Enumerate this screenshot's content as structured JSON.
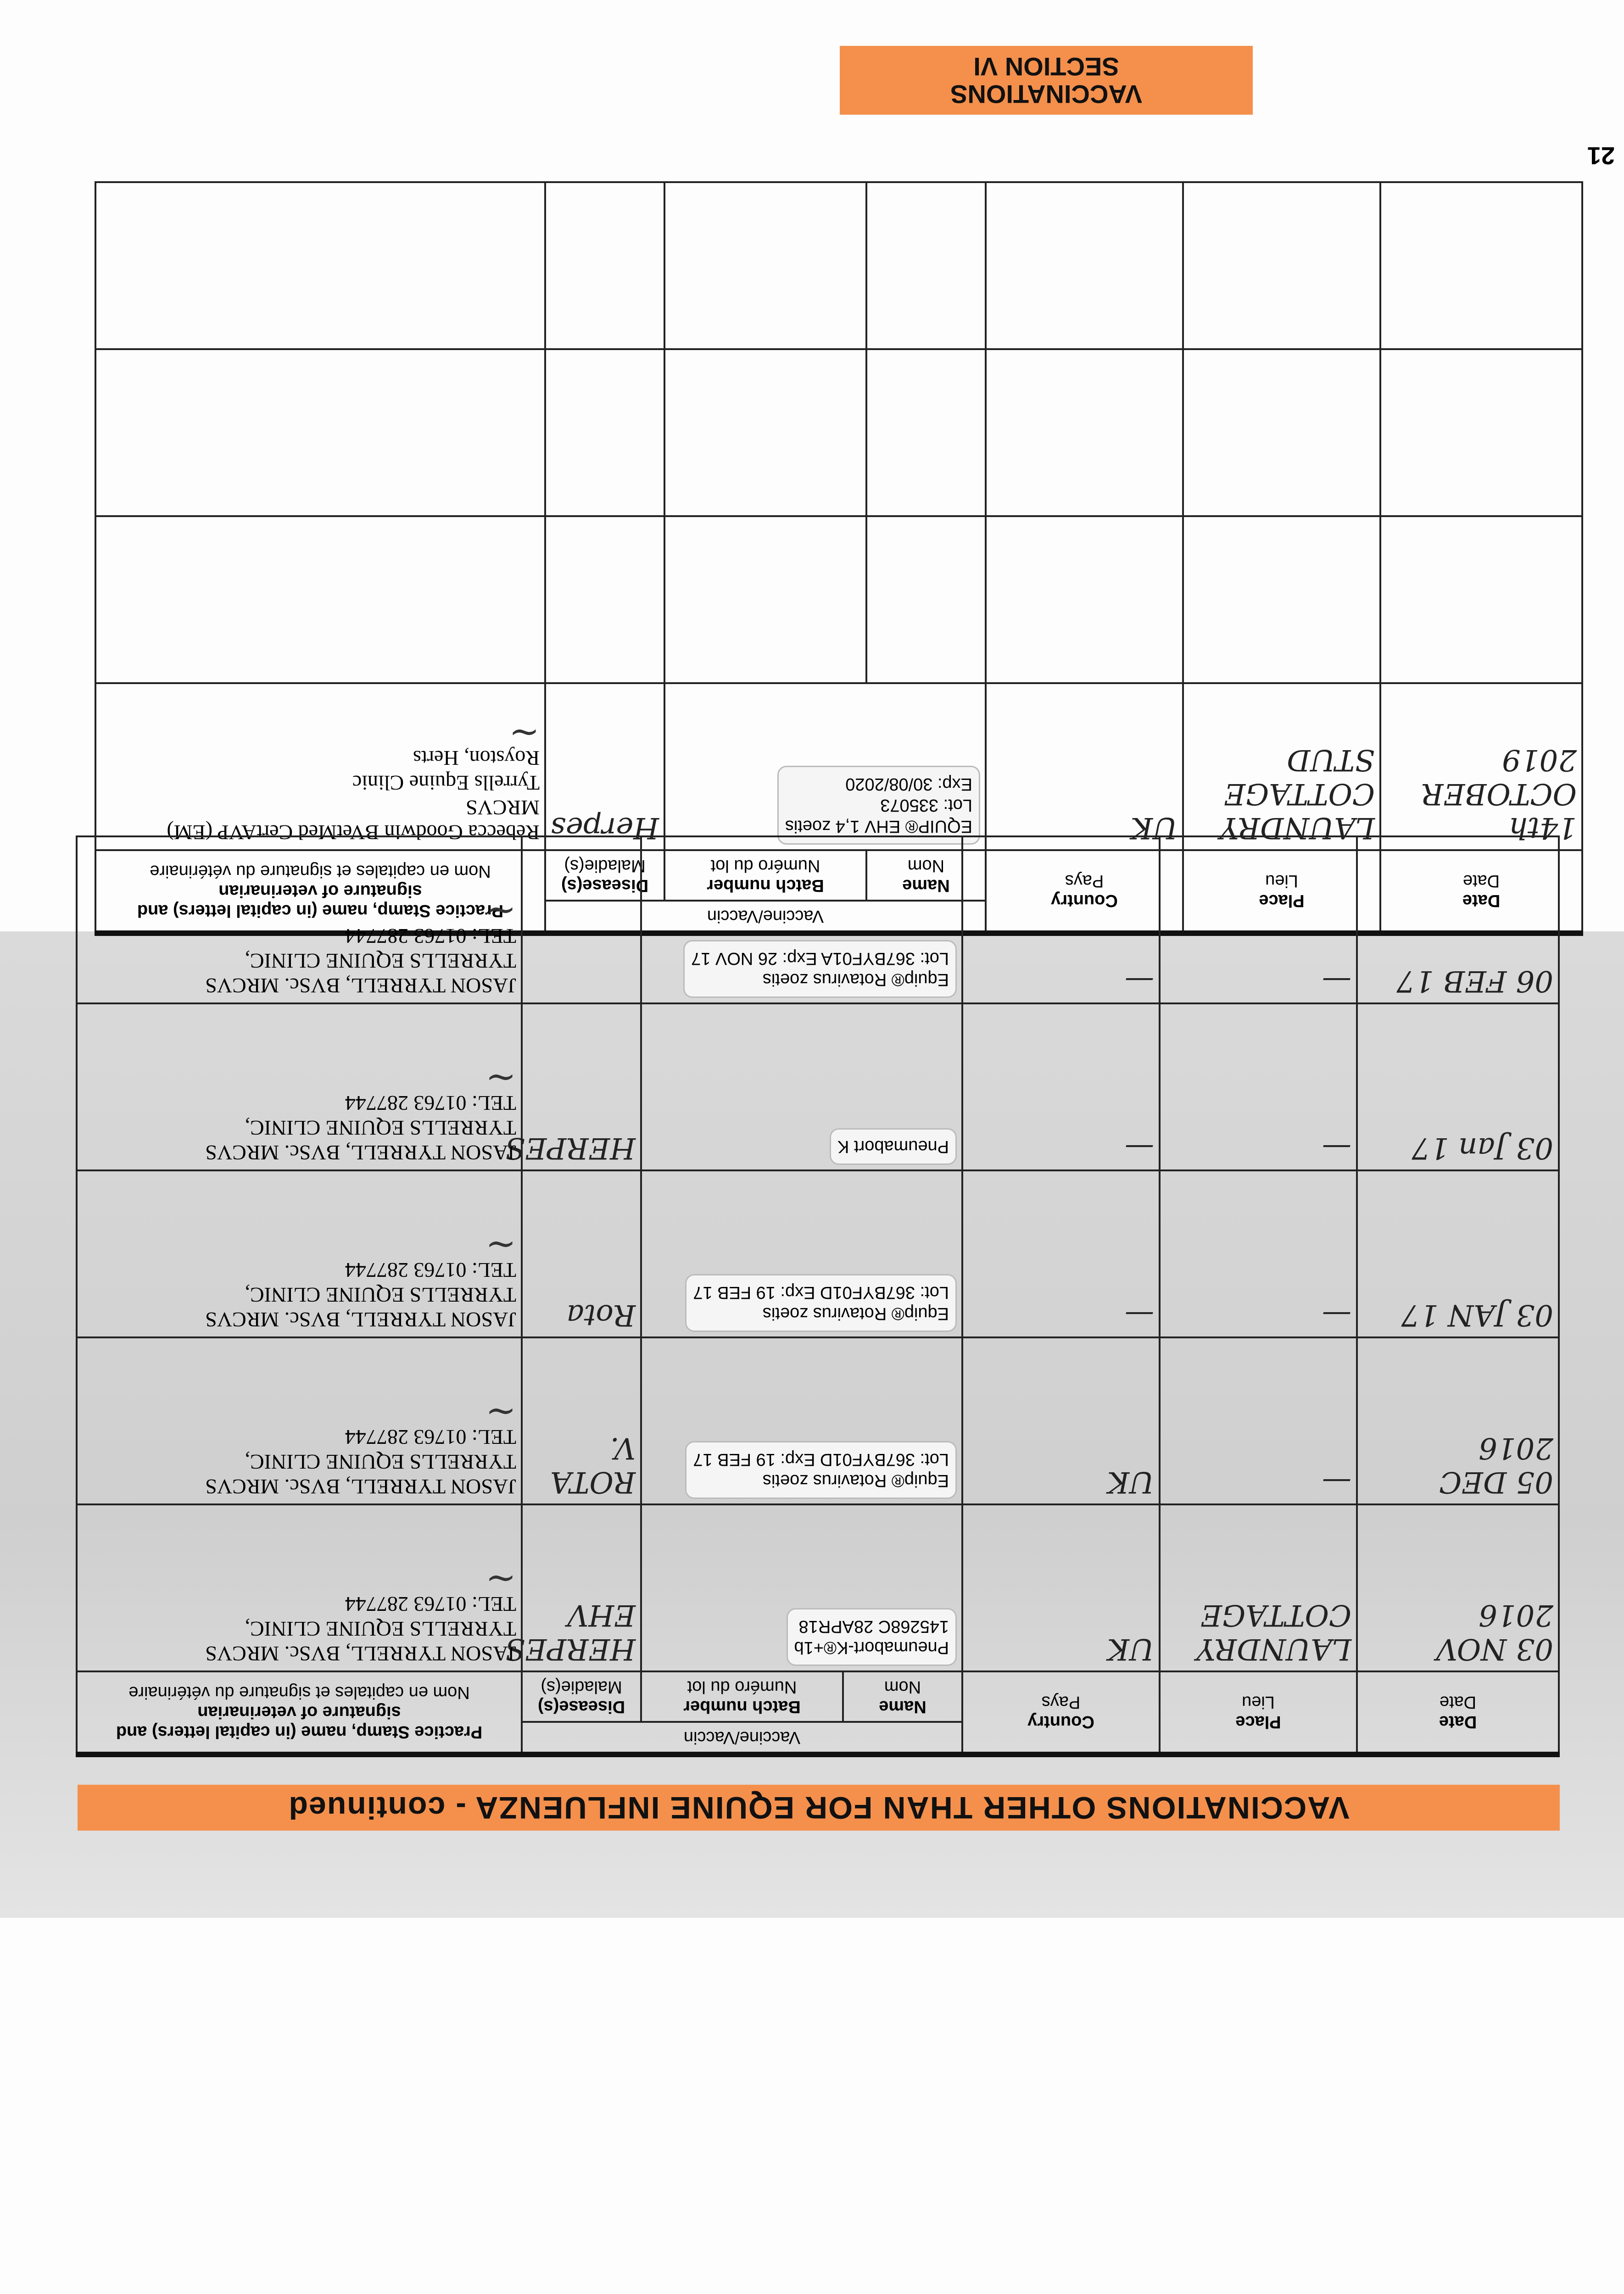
{
  "page_number": "21",
  "section_tab": {
    "line1": "VACCINATIONS",
    "line2": "SECTION VI"
  },
  "lower_banner": "VACCINATIONS OTHER THAN FOR EQUINE INFLUENZA - continued",
  "headers": {
    "date": "Date",
    "date_fr": "Date",
    "place": "Place",
    "place_fr": "Lieu",
    "country": "Country",
    "country_fr": "Pays",
    "vaccine": "Vaccine/Vaccin",
    "name": "Name",
    "name_fr": "Nom",
    "batch": "Batch number",
    "batch_fr": "Numéro du lot",
    "disease": "Disease(s)",
    "disease_fr": "Maladie(s)",
    "practice": "Practice Stamp, name (in capital letters) and signature of veterinarian",
    "practice_fr": "Nom en capitales et signature du vétérinaire"
  },
  "upper_rows": [
    {
      "date": "14th OCTOBER 2019",
      "place": "LAUNDRY COTTAGE STUD",
      "country": "UK",
      "vaccine_label": "EQUIP® EHV 1,4 zoetis",
      "lot": "Lot: 335073",
      "exp": "Exp: 30/08/2020",
      "disease": "Herpes",
      "practice": "Rebecca Goodwin BVetMed CertAVP (EM) MRCVS",
      "practice2": "Tyrrells Equine Clinic",
      "practice3": "Royston, Herts"
    },
    {},
    {},
    {}
  ],
  "lower_rows": [
    {
      "date": "03 NOV 2016",
      "place": "LAUNDRY COTTAGE",
      "country": "UK",
      "name": "Pneumabort-K®+1b",
      "batch": "145268C 28APR18",
      "disease": "HERPES EHV",
      "practice": "JASON TYRRELL, BVSc. MRCVS",
      "practice2": "TYRRELLS EQUINE CLINIC,",
      "practice3": "TEL: 01763 287744"
    },
    {
      "date": "05 DEC 2016",
      "place": "—",
      "country": "UK",
      "name": "Equip® Rotavirus zoetis",
      "batch": "Lot: 367BYF01D Exp: 19 FEB 17",
      "disease": "ROTA V.",
      "practice": "JASON TYRRELL, BVSc. MRCVS",
      "practice2": "TYRRELLS EQUINE CLINIC,",
      "practice3": "TEL: 01763 287744"
    },
    {
      "date": "03 JAN 17",
      "place": "—",
      "country": "—",
      "name": "Equip® Rotavirus zoetis",
      "batch": "Lot: 367BYF01D Exp: 19 FEB 17",
      "disease": "Rota",
      "practice": "JASON TYRRELL, BVSc. MRCVS",
      "practice2": "TYRRELLS EQUINE CLINIC,",
      "practice3": "TEL: 01763 287744"
    },
    {
      "date": "03 Jan 17",
      "place": "—",
      "country": "—",
      "name": "Pneumabort K",
      "batch": "",
      "disease": "HERPES",
      "practice": "JASON TYRRELL, BVSc. MRCVS",
      "practice2": "TYRRELLS EQUINE CLINIC,",
      "practice3": "TEL: 01763 287744"
    },
    {
      "date": "06 FEB 17",
      "place": "—",
      "country": "—",
      "name": "Equip® Rotavirus zoetis",
      "batch": "Lot: 367BYF01A Exp: 26 NOV 17",
      "disease": "",
      "practice": "JASON TYRRELL, BVSc. MRCVS",
      "practice2": "TYRRELLS EQUINE CLINIC,",
      "practice3": "TEL: 01763 287744"
    }
  ],
  "colors": {
    "banner": "#f4904c"
  }
}
